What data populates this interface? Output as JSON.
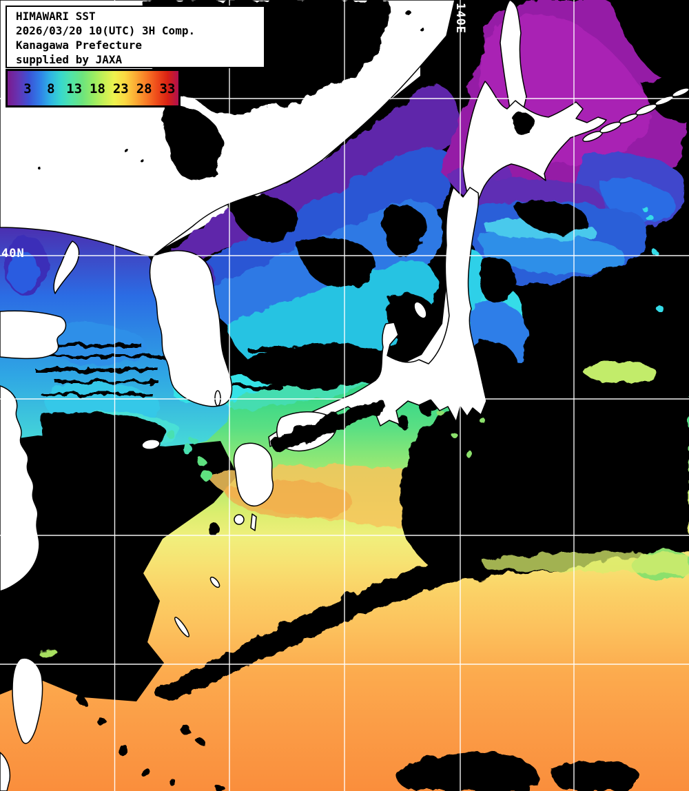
{
  "header": {
    "lines": [
      "HIMAWARI SST",
      "2026/03/20 10(UTC) 3H Comp.",
      "Kanagawa Prefecture",
      "supplied by JAXA"
    ]
  },
  "colorbar": {
    "ticks": [
      "3",
      "8",
      "13",
      "18",
      "23",
      "28",
      "33"
    ],
    "gradient": [
      "#7a1b8f",
      "#6633b2",
      "#3b52d6",
      "#2f7ee8",
      "#2fb4e4",
      "#38d8cc",
      "#52e4a6",
      "#6ce47e",
      "#96ec64",
      "#c6f056",
      "#eef24e",
      "#fbd842",
      "#fbab34",
      "#f97b26",
      "#ee4a1a",
      "#d92114",
      "#b01050"
    ]
  },
  "grid": {
    "meridian_label": "140E",
    "parallel_label": "40N",
    "meridians_x": [
      166.5,
      333,
      500,
      668,
      833
    ],
    "parallels_y": [
      143,
      371,
      579,
      777,
      964
    ],
    "line_color": "#ffffff"
  },
  "map": {
    "land_color": "#ffffff",
    "coast_color": "#000000",
    "cloud_color": "#000000",
    "sea_palette": {
      "okhotsk_magenta": "#951ba6",
      "japan_sea_violet": "#5e28aa",
      "japan_sea_blue": "#2e79e4",
      "japan_sea_cyan": "#27c3e2",
      "yellow_sea_blue": "#2b6ce4",
      "pacific_green": "#58df84",
      "pacific_yellow": "#eef07a",
      "pacific_orange": "#fb9c46"
    }
  }
}
